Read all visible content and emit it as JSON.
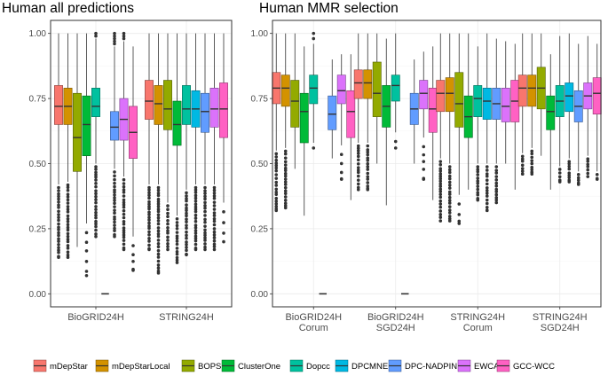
{
  "chart_data": {
    "type": "boxplot",
    "y_ticks": [
      "0.00",
      "0.25",
      "0.50",
      "0.75",
      "1.00"
    ],
    "ylim": [
      -0.05,
      1.05
    ],
    "legend": [
      {
        "name": "mDepStar",
        "color": "#F8766D"
      },
      {
        "name": "mDepStarLocal",
        "color": "#D39200"
      },
      {
        "name": "BOPS",
        "color": "#93AA00"
      },
      {
        "name": "ClusterOne",
        "color": "#00BA38"
      },
      {
        "name": "Dopcc",
        "color": "#00C19F"
      },
      {
        "name": "DPCMNE",
        "color": "#00B9E3"
      },
      {
        "name": "DPC-NADPIN",
        "color": "#619CFF"
      },
      {
        "name": "EWCA",
        "color": "#DB72FB"
      },
      {
        "name": "GCC-WCC",
        "color": "#FF61C3"
      }
    ],
    "panels": [
      {
        "title": "Human all predictions",
        "groups": [
          {
            "label": [
              "BioGRID24H"
            ],
            "boxes": [
              {
                "method": 0,
                "q1": 0.65,
                "median": 0.72,
                "q3": 0.8,
                "wlo": 0.42,
                "whi": 1.0,
                "olo": 0.14,
                "ohi": null,
                "dense": true
              },
              {
                "method": 1,
                "q1": 0.65,
                "median": 0.72,
                "q3": 0.79,
                "wlo": 0.43,
                "whi": 1.0,
                "olo": 0.14,
                "ohi": null,
                "dense": true
              },
              {
                "method": 2,
                "q1": 0.47,
                "median": 0.6,
                "q3": 0.77,
                "wlo": 0.18,
                "whi": 1.0,
                "olo": null,
                "ohi": null,
                "dense": false
              },
              {
                "method": 3,
                "q1": 0.53,
                "median": 0.65,
                "q3": 0.76,
                "wlo": 0.27,
                "whi": 1.0,
                "olo": 0.07,
                "ohi": null,
                "dense": false
              },
              {
                "method": 4,
                "q1": 0.68,
                "median": 0.72,
                "q3": 0.79,
                "wlo": 0.5,
                "whi": 0.98,
                "olo": 0.22,
                "ohi": 1.0,
                "dense": true
              },
              {
                "method": 5,
                "q1": 0.0,
                "median": 0.0,
                "q3": 0.0,
                "wlo": 0.0,
                "whi": 0.0,
                "olo": null,
                "ohi": null,
                "dense": false
              },
              {
                "method": 6,
                "q1": 0.59,
                "median": 0.64,
                "q3": 0.7,
                "wlo": 0.48,
                "whi": 0.95,
                "olo": 0.22,
                "ohi": 1.0,
                "dense": true
              },
              {
                "method": 7,
                "q1": 0.59,
                "median": 0.67,
                "q3": 0.75,
                "wlo": 0.45,
                "whi": 0.97,
                "olo": 0.17,
                "ohi": 1.0,
                "dense": true
              },
              {
                "method": 8,
                "q1": 0.52,
                "median": 0.62,
                "q3": 0.72,
                "wlo": 0.22,
                "whi": 0.95,
                "olo": 0.09,
                "ohi": null,
                "dense": false
              }
            ]
          },
          {
            "label": [
              "STRING24H"
            ],
            "boxes": [
              {
                "method": 0,
                "q1": 0.67,
                "median": 0.74,
                "q3": 0.82,
                "wlo": 0.42,
                "whi": 1.0,
                "olo": 0.17,
                "ohi": null,
                "dense": true
              },
              {
                "method": 1,
                "q1": 0.65,
                "median": 0.73,
                "q3": 0.8,
                "wlo": 0.42,
                "whi": 1.0,
                "olo": 0.08,
                "ohi": null,
                "dense": true
              },
              {
                "method": 2,
                "q1": 0.63,
                "median": 0.71,
                "q3": 0.82,
                "wlo": 0.35,
                "whi": 1.0,
                "olo": 0.17,
                "ohi": null,
                "dense": true
              },
              {
                "method": 3,
                "q1": 0.57,
                "median": 0.65,
                "q3": 0.74,
                "wlo": 0.3,
                "whi": 1.0,
                "olo": 0.12,
                "ohi": null,
                "dense": true
              },
              {
                "method": 4,
                "q1": 0.65,
                "median": 0.71,
                "q3": 0.8,
                "wlo": 0.4,
                "whi": 1.0,
                "olo": 0.15,
                "ohi": null,
                "dense": true
              },
              {
                "method": 5,
                "q1": 0.64,
                "median": 0.71,
                "q3": 0.78,
                "wlo": 0.42,
                "whi": 1.0,
                "olo": 0.17,
                "ohi": null,
                "dense": true
              },
              {
                "method": 6,
                "q1": 0.62,
                "median": 0.7,
                "q3": 0.77,
                "wlo": 0.42,
                "whi": 1.0,
                "olo": 0.17,
                "ohi": null,
                "dense": true
              },
              {
                "method": 7,
                "q1": 0.64,
                "median": 0.71,
                "q3": 0.79,
                "wlo": 0.42,
                "whi": 1.0,
                "olo": 0.17,
                "ohi": null,
                "dense": true
              },
              {
                "method": 8,
                "q1": 0.6,
                "median": 0.71,
                "q3": 0.81,
                "wlo": 0.35,
                "whi": 1.0,
                "olo": 0.2,
                "ohi": null,
                "dense": false
              }
            ]
          }
        ]
      },
      {
        "title": "Human MMR selection",
        "groups": [
          {
            "label": [
              "BioGRID24H",
              "Corum"
            ],
            "boxes": [
              {
                "method": 0,
                "q1": 0.73,
                "median": 0.79,
                "q3": 0.85,
                "wlo": 0.55,
                "whi": 1.0,
                "olo": 0.32,
                "ohi": null,
                "dense": true
              },
              {
                "method": 1,
                "q1": 0.72,
                "median": 0.79,
                "q3": 0.84,
                "wlo": 0.56,
                "whi": 1.0,
                "olo": 0.33,
                "ohi": null,
                "dense": true
              },
              {
                "method": 2,
                "q1": 0.64,
                "median": 0.74,
                "q3": 0.82,
                "wlo": 0.48,
                "whi": 1.0,
                "olo": null,
                "ohi": null,
                "dense": false
              },
              {
                "method": 3,
                "q1": 0.58,
                "median": 0.7,
                "q3": 0.77,
                "wlo": 0.3,
                "whi": 0.95,
                "olo": null,
                "ohi": null,
                "dense": false
              },
              {
                "method": 4,
                "q1": 0.73,
                "median": 0.79,
                "q3": 0.84,
                "wlo": 0.58,
                "whi": 0.96,
                "olo": 0.56,
                "ohi": 1.0,
                "dense": false
              },
              {
                "method": 5,
                "q1": 0.0,
                "median": 0.0,
                "q3": 0.0,
                "wlo": 0.0,
                "whi": 0.0,
                "olo": null,
                "ohi": null,
                "dense": false
              },
              {
                "method": 6,
                "q1": 0.63,
                "median": 0.69,
                "q3": 0.76,
                "wlo": 0.52,
                "whi": 0.9,
                "olo": null,
                "ohi": null,
                "dense": false
              },
              {
                "method": 7,
                "q1": 0.73,
                "median": 0.78,
                "q3": 0.84,
                "wlo": 0.57,
                "whi": 0.92,
                "olo": 0.44,
                "ohi": null,
                "dense": false
              },
              {
                "method": 8,
                "q1": 0.6,
                "median": 0.7,
                "q3": 0.78,
                "wlo": 0.36,
                "whi": 0.92,
                "olo": null,
                "ohi": null,
                "dense": false
              }
            ]
          },
          {
            "label": [
              "BioGRID24H",
              "SGD24H"
            ],
            "boxes": [
              {
                "method": 0,
                "q1": 0.75,
                "median": 0.81,
                "q3": 0.86,
                "wlo": 0.58,
                "whi": 1.0,
                "olo": 0.4,
                "ohi": null,
                "dense": true
              },
              {
                "method": 1,
                "q1": 0.75,
                "median": 0.81,
                "q3": 0.86,
                "wlo": 0.58,
                "whi": 1.0,
                "olo": 0.4,
                "ohi": null,
                "dense": true
              },
              {
                "method": 2,
                "q1": 0.68,
                "median": 0.77,
                "q3": 0.89,
                "wlo": 0.5,
                "whi": 1.0,
                "olo": null,
                "ohi": null,
                "dense": false
              },
              {
                "method": 3,
                "q1": 0.64,
                "median": 0.72,
                "q3": 0.8,
                "wlo": 0.34,
                "whi": 0.98,
                "olo": null,
                "ohi": null,
                "dense": false
              },
              {
                "method": 4,
                "q1": 0.74,
                "median": 0.8,
                "q3": 0.84,
                "wlo": 0.62,
                "whi": 1.0,
                "olo": 0.56,
                "ohi": null,
                "dense": false
              },
              {
                "method": 5,
                "q1": 0.0,
                "median": 0.0,
                "q3": 0.0,
                "wlo": 0.0,
                "whi": 0.0,
                "olo": null,
                "ohi": null,
                "dense": false
              },
              {
                "method": 6,
                "q1": 0.65,
                "median": 0.71,
                "q3": 0.77,
                "wlo": 0.5,
                "whi": 0.9,
                "olo": null,
                "ohi": null,
                "dense": false
              },
              {
                "method": 7,
                "q1": 0.71,
                "median": 0.77,
                "q3": 0.82,
                "wlo": 0.6,
                "whi": 0.93,
                "olo": 0.44,
                "ohi": null,
                "dense": false
              },
              {
                "method": 8,
                "q1": 0.62,
                "median": 0.71,
                "q3": 0.79,
                "wlo": 0.36,
                "whi": 0.95,
                "olo": null,
                "ohi": null,
                "dense": false
              }
            ]
          },
          {
            "label": [
              "STRING24H",
              "Corum"
            ],
            "boxes": [
              {
                "method": 0,
                "q1": 0.7,
                "median": 0.77,
                "q3": 0.82,
                "wlo": 0.52,
                "whi": 1.0,
                "olo": 0.28,
                "ohi": null,
                "dense": true
              },
              {
                "method": 1,
                "q1": 0.7,
                "median": 0.77,
                "q3": 0.83,
                "wlo": 0.5,
                "whi": 1.0,
                "olo": 0.28,
                "ohi": null,
                "dense": true
              },
              {
                "method": 2,
                "q1": 0.64,
                "median": 0.73,
                "q3": 0.85,
                "wlo": 0.38,
                "whi": 1.0,
                "olo": 0.27,
                "ohi": null,
                "dense": false
              },
              {
                "method": 3,
                "q1": 0.6,
                "median": 0.68,
                "q3": 0.76,
                "wlo": 0.4,
                "whi": 1.0,
                "olo": null,
                "ohi": null,
                "dense": false
              },
              {
                "method": 4,
                "q1": 0.68,
                "median": 0.75,
                "q3": 0.8,
                "wlo": 0.5,
                "whi": 0.95,
                "olo": 0.36,
                "ohi": null,
                "dense": true
              },
              {
                "method": 5,
                "q1": 0.67,
                "median": 0.74,
                "q3": 0.79,
                "wlo": 0.5,
                "whi": 1.0,
                "olo": 0.32,
                "ohi": null,
                "dense": true
              },
              {
                "method": 6,
                "q1": 0.67,
                "median": 0.73,
                "q3": 0.79,
                "wlo": 0.5,
                "whi": 0.98,
                "olo": 0.35,
                "ohi": null,
                "dense": true
              },
              {
                "method": 7,
                "q1": 0.66,
                "median": 0.72,
                "q3": 0.79,
                "wlo": 0.5,
                "whi": 0.97,
                "olo": null,
                "ohi": null,
                "dense": false
              },
              {
                "method": 8,
                "q1": 0.66,
                "median": 0.74,
                "q3": 0.82,
                "wlo": 0.4,
                "whi": 0.96,
                "olo": null,
                "ohi": null,
                "dense": false
              }
            ]
          },
          {
            "label": [
              "STRING24H",
              "SGD24H"
            ],
            "boxes": [
              {
                "method": 0,
                "q1": 0.72,
                "median": 0.79,
                "q3": 0.84,
                "wlo": 0.54,
                "whi": 1.0,
                "olo": 0.46,
                "ohi": null,
                "dense": true
              },
              {
                "method": 1,
                "q1": 0.72,
                "median": 0.79,
                "q3": 0.84,
                "wlo": 0.56,
                "whi": 1.0,
                "olo": 0.46,
                "ohi": null,
                "dense": true
              },
              {
                "method": 2,
                "q1": 0.71,
                "median": 0.79,
                "q3": 0.87,
                "wlo": 0.53,
                "whi": 1.0,
                "olo": null,
                "ohi": null,
                "dense": false
              },
              {
                "method": 3,
                "q1": 0.63,
                "median": 0.7,
                "q3": 0.76,
                "wlo": 0.4,
                "whi": 0.92,
                "olo": null,
                "ohi": null,
                "dense": false
              },
              {
                "method": 4,
                "q1": 0.68,
                "median": 0.74,
                "q3": 0.8,
                "wlo": 0.49,
                "whi": 0.99,
                "olo": 0.43,
                "ohi": null,
                "dense": true
              },
              {
                "method": 5,
                "q1": 0.7,
                "median": 0.76,
                "q3": 0.81,
                "wlo": 0.52,
                "whi": 1.0,
                "olo": 0.43,
                "ohi": null,
                "dense": true
              },
              {
                "method": 6,
                "q1": 0.66,
                "median": 0.72,
                "q3": 0.78,
                "wlo": 0.47,
                "whi": 0.96,
                "olo": 0.42,
                "ohi": null,
                "dense": true
              },
              {
                "method": 7,
                "q1": 0.71,
                "median": 0.76,
                "q3": 0.81,
                "wlo": 0.53,
                "whi": 0.99,
                "olo": 0.45,
                "ohi": null,
                "dense": true
              },
              {
                "method": 8,
                "q1": 0.69,
                "median": 0.77,
                "q3": 0.83,
                "wlo": 0.47,
                "whi": 0.96,
                "olo": 0.44,
                "ohi": null,
                "dense": true
              }
            ]
          }
        ]
      }
    ]
  }
}
